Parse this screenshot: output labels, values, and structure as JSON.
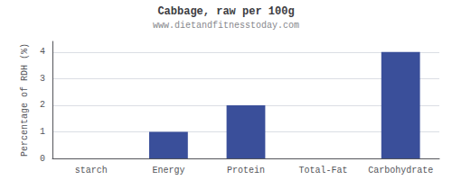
{
  "chart_data": {
    "type": "bar",
    "title": "Cabbage, raw per 100g",
    "subtitle": "www.dietandfitnesstoday.com",
    "categories": [
      "starch",
      "Energy",
      "Protein",
      "Total-Fat",
      "Carbohydrate"
    ],
    "values": [
      0.0,
      1.0,
      2.0,
      0.0,
      4.0
    ],
    "color": "#3a4f9a",
    "ylabel": "Percentage of RDH (%)",
    "ylim": [
      0,
      4.4
    ],
    "yticks": [
      0,
      1,
      2,
      3,
      4
    ],
    "grid": true
  }
}
